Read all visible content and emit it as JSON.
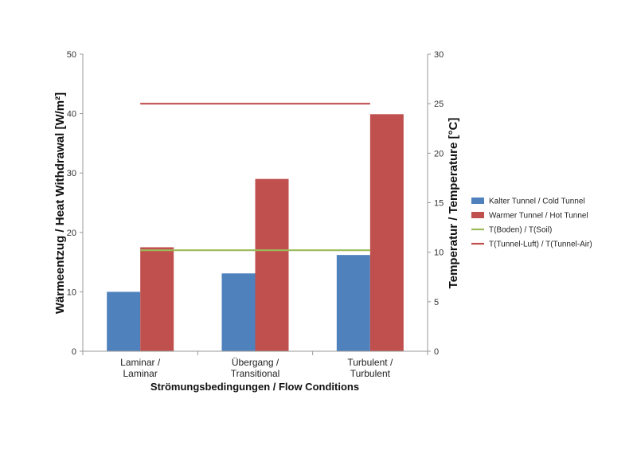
{
  "chart_data": {
    "type": "bar",
    "title": "",
    "categories": [
      [
        "Laminar /",
        "Laminar"
      ],
      [
        "Übergang /",
        "Transitional"
      ],
      [
        "Turbulent /",
        "Turbulent"
      ]
    ],
    "series": [
      {
        "name": "Kalter Tunnel / Cold Tunnel",
        "type": "bar",
        "axis": "left",
        "color": "#4f81bd",
        "values": [
          10,
          13.1,
          16.2
        ]
      },
      {
        "name": "Warmer Tunnel / Hot Tunnel",
        "type": "bar",
        "axis": "left",
        "color": "#c0504d",
        "values": [
          17.5,
          29,
          39.9
        ]
      },
      {
        "name": "T(Boden) / T(Soil)",
        "type": "line",
        "axis": "right",
        "color": "#9bbb59",
        "values": [
          10.2,
          10.2,
          10.2
        ]
      },
      {
        "name": "T(Tunnel-Luft) / T(Tunnel-Air)",
        "type": "line",
        "axis": "right",
        "color": "#c0504d",
        "values": [
          25,
          25,
          25
        ]
      }
    ],
    "xlabel": "Strömungsbedingungen / Flow Conditions",
    "ylabel": "Wärmeentzug / Heat Withdrawal [W/m²]",
    "y2label": "Temperatur / Temperature [°C]",
    "ylim": [
      0,
      50
    ],
    "yticks": [
      0,
      10,
      20,
      30,
      40,
      50
    ],
    "y2lim": [
      0,
      30
    ],
    "y2ticks": [
      0,
      5,
      10,
      15,
      20,
      25,
      30
    ],
    "legend_position": "right",
    "grid": false
  }
}
